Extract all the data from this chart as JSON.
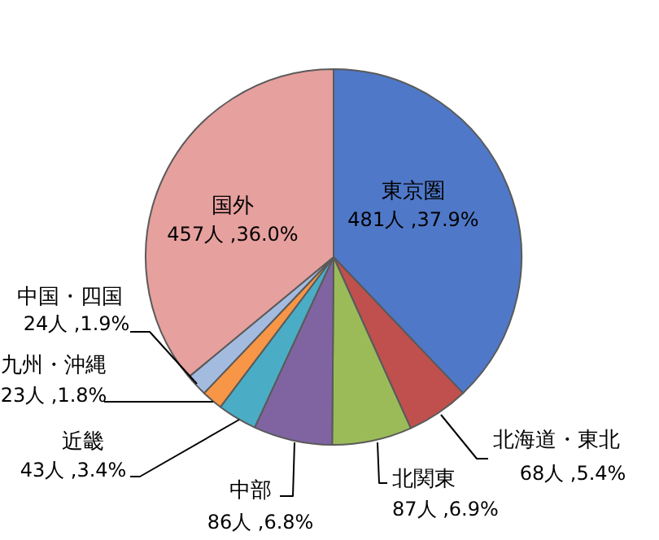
{
  "chart_data": {
    "type": "pie",
    "categories": [
      "東京圏",
      "北海道・東北",
      "北関東",
      "中部",
      "近畿",
      "九州・沖縄",
      "中国・四国",
      "国外"
    ],
    "values": [
      481,
      68,
      87,
      86,
      43,
      23,
      24,
      457
    ],
    "colors": [
      "#4f78c8",
      "#c0504d",
      "#9bbb59",
      "#8064a2",
      "#4bacc6",
      "#f79646",
      "#a4bbe0",
      "#e6a09e"
    ],
    "value_labels": [
      "481人 ,37.9%",
      "68人 ,5.4%",
      "87人 ,6.9%",
      "86人 ,6.8%",
      "43人 ,3.4%",
      "23人 ,1.8%",
      "24人 ,1.9%",
      "457人 ,36.0%"
    ]
  }
}
